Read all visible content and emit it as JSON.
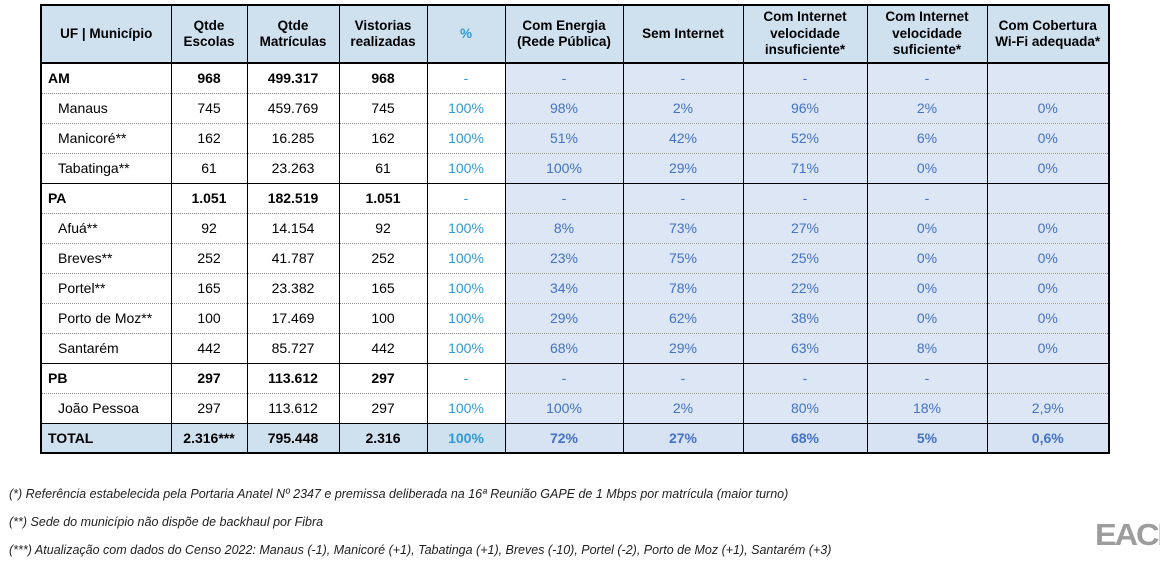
{
  "table": {
    "columns": [
      {
        "label": "UF | Município"
      },
      {
        "label": "Qtde Escolas"
      },
      {
        "label": "Qtde Matrículas"
      },
      {
        "label": "Vistorias realizadas"
      },
      {
        "label": "%"
      },
      {
        "label": "Com Energia (Rede Pública)"
      },
      {
        "label": "Sem Internet"
      },
      {
        "label": "Com Internet velocidade insuficiente*"
      },
      {
        "label": "Com Internet velocidade suficiente*"
      },
      {
        "label": "Com Cobertura Wi-Fi adequada*"
      }
    ],
    "rows": [
      {
        "type": "state",
        "cells": [
          "AM",
          "968",
          "499.317",
          "968",
          "-",
          "-",
          "-",
          "-",
          "-",
          ""
        ]
      },
      {
        "type": "muni",
        "cells": [
          "Manaus",
          "745",
          "459.769",
          "745",
          "100%",
          "98%",
          "2%",
          "96%",
          "2%",
          "0%"
        ]
      },
      {
        "type": "muni",
        "cells": [
          "Manicoré**",
          "162",
          "16.285",
          "162",
          "100%",
          "51%",
          "42%",
          "52%",
          "6%",
          "0%"
        ]
      },
      {
        "type": "muni",
        "cells": [
          "Tabatinga**",
          "61",
          "23.263",
          "61",
          "100%",
          "100%",
          "29%",
          "71%",
          "0%",
          "0%"
        ]
      },
      {
        "type": "state",
        "cells": [
          "PA",
          "1.051",
          "182.519",
          "1.051",
          "-",
          "-",
          "-",
          "-",
          "-",
          ""
        ]
      },
      {
        "type": "muni",
        "cells": [
          "Afuá**",
          "92",
          "14.154",
          "92",
          "100%",
          "8%",
          "73%",
          "27%",
          "0%",
          "0%"
        ]
      },
      {
        "type": "muni",
        "cells": [
          "Breves**",
          "252",
          "41.787",
          "252",
          "100%",
          "23%",
          "75%",
          "25%",
          "0%",
          "0%"
        ]
      },
      {
        "type": "muni",
        "cells": [
          "Portel**",
          "165",
          "23.382",
          "165",
          "100%",
          "34%",
          "78%",
          "22%",
          "0%",
          "0%"
        ]
      },
      {
        "type": "muni",
        "cells": [
          "Porto de Moz**",
          "100",
          "17.469",
          "100",
          "100%",
          "29%",
          "62%",
          "38%",
          "0%",
          "0%"
        ]
      },
      {
        "type": "muni",
        "cells": [
          "Santarém",
          "442",
          "85.727",
          "442",
          "100%",
          "68%",
          "29%",
          "63%",
          "8%",
          "0%"
        ]
      },
      {
        "type": "state",
        "cells": [
          "PB",
          "297",
          "113.612",
          "297",
          "-",
          "-",
          "-",
          "-",
          "-",
          ""
        ]
      },
      {
        "type": "muni",
        "cells": [
          "João Pessoa",
          "297",
          "113.612",
          "297",
          "100%",
          "100%",
          "2%",
          "80%",
          "18%",
          "2,9%"
        ]
      },
      {
        "type": "total",
        "cells": [
          "TOTAL",
          "2.316***",
          "795.448",
          "2.316",
          "100%",
          "72%",
          "27%",
          "68%",
          "5%",
          "0,6%"
        ]
      }
    ]
  },
  "footnotes": [
    "(*) Referência estabelecida pela Portaria Anatel Nº 2347 e premissa deliberada na 16ª Reunião GAPE de 1 Mbps por matrícula (maior turno)",
    "(**) Sede do município não dispõe de backhaul por Fibra",
    "(***) Atualização com dados do Censo 2022: Manaus (-1), Manicoré (+1), Tabatinga (+1), Breves (-10), Portel (-2), Porto de Moz (+1), Santarém (+3)"
  ],
  "logo": {
    "text": "EACE"
  },
  "colors": {
    "header_bg": "#cfe0ef",
    "body_blue_bg": "#dce6f5",
    "total_left_bg": "#cfe0ef",
    "total_right_bg": "#d7e2f3",
    "percent_bright_blue": "#2e9ad8",
    "value_muted_blue": "#4472c4",
    "border": "#000000",
    "dotted_separator": "#8f8f8f",
    "footnote_text": "#1f1f1f",
    "logo_gray": "#9c9c9c"
  }
}
